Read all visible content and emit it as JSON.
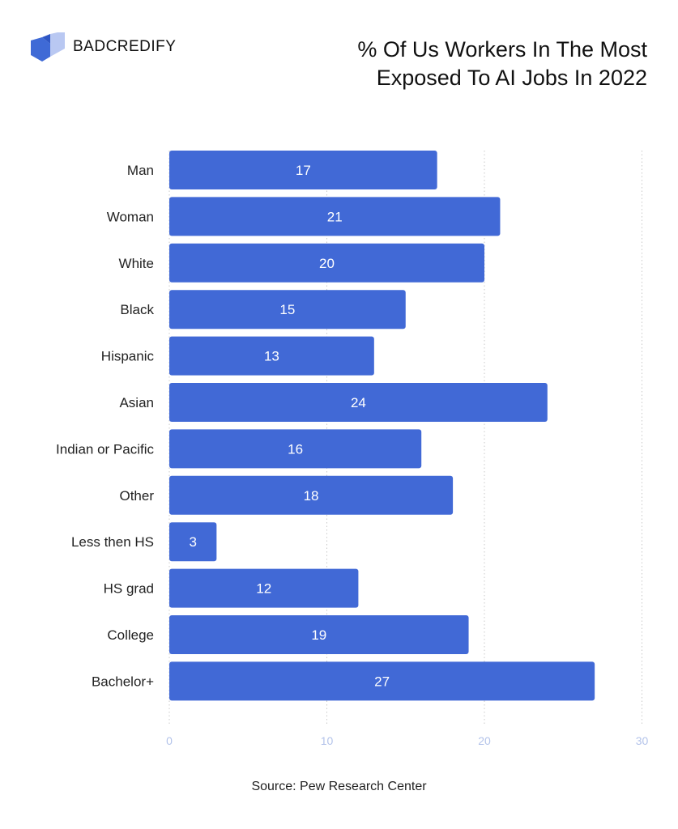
{
  "brand": {
    "name": "BADCREDIFY",
    "logo_icon": "stacked-chevron-logo-icon",
    "logo_colors": [
      "#3F6AD6",
      "#B9C8F2"
    ]
  },
  "source": "Source: Pew Research Center",
  "chart_data": {
    "type": "bar",
    "orientation": "horizontal",
    "title": "% Of Us Workers In The Most Exposed To AI Jobs In 2022",
    "xlabel": "",
    "ylabel": "",
    "categories": [
      "Man",
      "Woman",
      "White",
      "Black",
      "Hispanic",
      "Asian",
      "Indian or Pacific",
      "Other",
      "Less then HS",
      "HS grad",
      "College",
      "Bachelor+"
    ],
    "values": [
      17,
      21,
      20,
      15,
      13,
      24,
      16,
      18,
      3,
      12,
      19,
      27
    ],
    "xlim": [
      0,
      30
    ],
    "xticks": [
      0,
      10,
      20,
      30
    ],
    "grid": "vertical dotted",
    "legend": "none",
    "bar_color": "#4169D6",
    "value_label_color": "#FFFFFF",
    "tick_label_color": "#B3C3EA"
  }
}
